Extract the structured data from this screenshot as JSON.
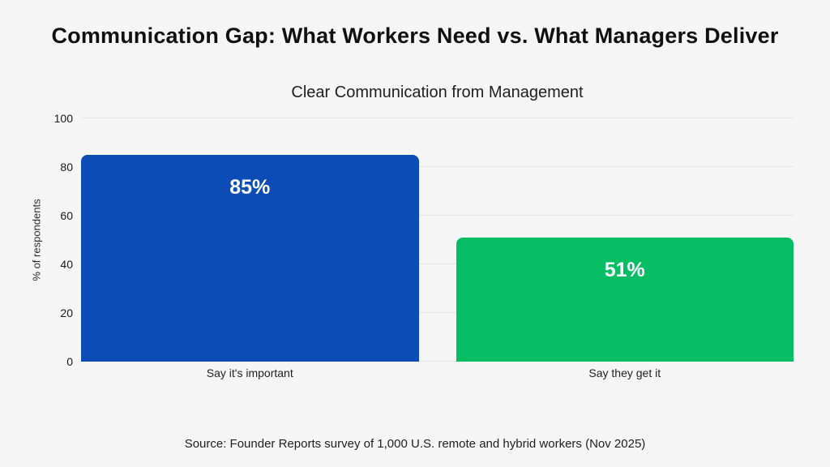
{
  "page": {
    "background": "#f5f5f5",
    "title": "Communication Gap: What Workers Need vs. What Managers Deliver",
    "source": "Source: Founder Reports survey of 1,000 U.S. remote and hybrid workers (Nov 2025)"
  },
  "chart_data": {
    "type": "bar",
    "title": "Clear Communication from Management",
    "categories": [
      "Say it's important",
      "Say they get it"
    ],
    "values": [
      85,
      51
    ],
    "value_labels": [
      "85%",
      "51%"
    ],
    "bar_colors": [
      "#0b4db4",
      "#05bd63"
    ],
    "value_label_color": "#ffffff",
    "xlabel": "",
    "ylabel": "% of respondents",
    "ylim": [
      0,
      100
    ],
    "yticks": [
      0,
      20,
      40,
      60,
      80,
      100
    ],
    "grid": "horizontal",
    "gridline_color": "#e3e3e3",
    "legend": "none"
  }
}
